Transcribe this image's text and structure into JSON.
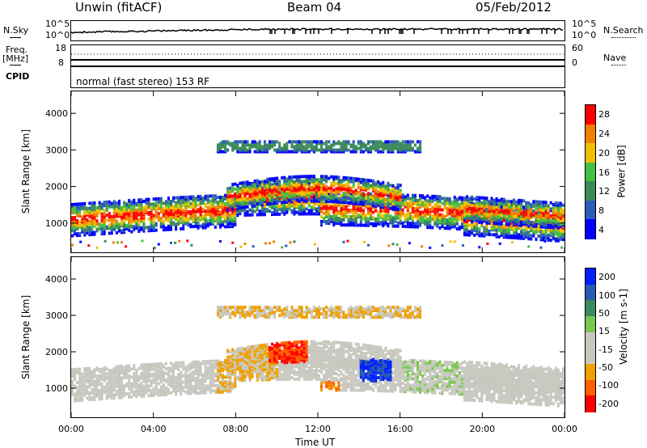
{
  "header": {
    "station": "Unwin (fitACF)",
    "beam": "Beam 04",
    "date": "05/Feb/2012"
  },
  "side_labels": {
    "nsky": "N.Sky",
    "freq": "Freq.",
    "mhz": "[MHz]",
    "cpid": "CPID",
    "nsearch": "N.Search",
    "nave": "Nave",
    "nsky_ticks": [
      "10^5",
      "10^0"
    ],
    "nsearch_ticks": [
      "10^5",
      "10^0"
    ],
    "freq_ticks": [
      "18",
      "8"
    ],
    "nave_ticks": [
      "60",
      "0"
    ]
  },
  "mode_text": "normal (fast stereo) 153 RF",
  "colors": {
    "power": [
      "#0000ff",
      "#2c5cb8",
      "#3b8a5a",
      "#44c044",
      "#f0c000",
      "#f08000",
      "#ff0000"
    ],
    "velocity": [
      "#ff0000",
      "#ff6000",
      "#f0a000",
      "#c8c8c0",
      "#c8c8c0",
      "#7ac850",
      "#3a8a60",
      "#2a5ab0",
      "#0020ff"
    ],
    "ground": "#999999"
  },
  "chart_data": [
    {
      "type": "heatmap",
      "title": "",
      "xlabel": "",
      "ylabel": "Slant Range [km]",
      "x_ticks": [
        "00:00",
        "04:00",
        "08:00",
        "12:00",
        "16:00",
        "20:00",
        "00:00"
      ],
      "y_ticks": [
        "1000",
        "2000",
        "3000",
        "4000"
      ],
      "ylim": [
        200,
        4600
      ],
      "colorbar_label": "Power [dB]",
      "colorbar_ticks": [
        "4",
        "8",
        "12",
        "16",
        "20",
        "24",
        "28"
      ]
    },
    {
      "type": "heatmap",
      "title": "",
      "xlabel": "Time UT",
      "ylabel": "Slant Range [km]",
      "x_ticks": [
        "00:00",
        "04:00",
        "08:00",
        "12:00",
        "16:00",
        "20:00",
        "00:00"
      ],
      "y_ticks": [
        "1000",
        "2000",
        "3000",
        "4000"
      ],
      "ylim": [
        200,
        4600
      ],
      "colorbar_label": "Velocity [m s-1]",
      "colorbar_ticks": [
        "200",
        "100",
        "50",
        "15",
        "-15",
        "-50",
        "-100",
        "-200"
      ]
    }
  ]
}
